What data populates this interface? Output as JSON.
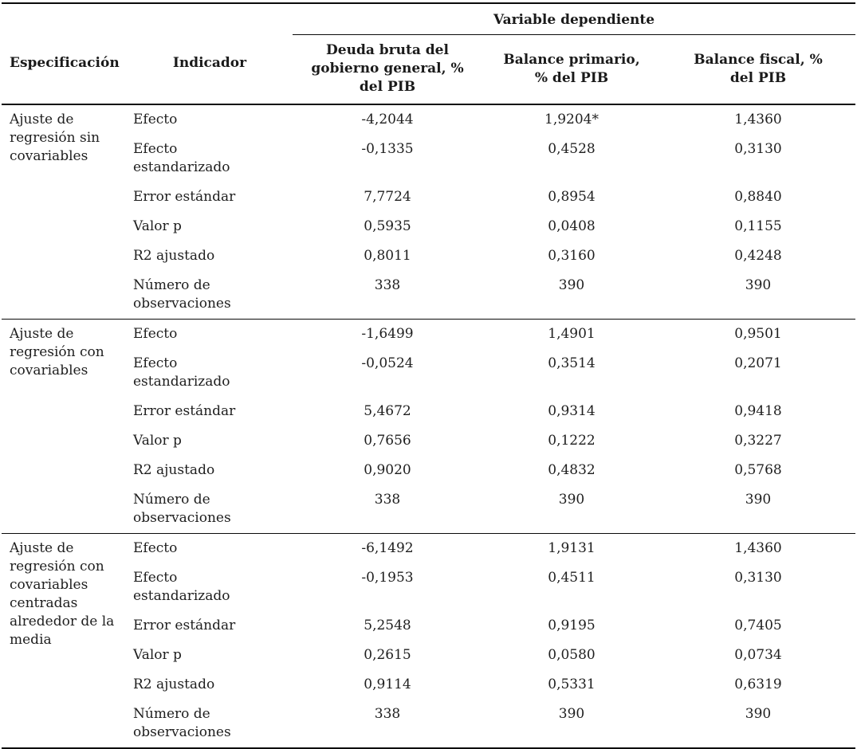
{
  "table": {
    "headers": {
      "especificacion": "Especificación",
      "indicador": "Indicador",
      "variable_dependiente": "Variable dependiente",
      "dep_vars": [
        "Deuda bruta del gobierno general, % del PIB",
        "Balance primario, % del PIB",
        "Balance fiscal, % del PIB"
      ]
    },
    "groups": [
      {
        "label": "Ajuste de regresión sin covariables",
        "rows": [
          {
            "indicator": "Efecto",
            "values": [
              "-4,2044",
              "1,9204*",
              "1,4360"
            ]
          },
          {
            "indicator": "Efecto estandarizado",
            "values": [
              "-0,1335",
              "0,4528",
              "0,3130"
            ]
          },
          {
            "indicator": "Error estándar",
            "values": [
              "7,7724",
              "0,8954",
              "0,8840"
            ]
          },
          {
            "indicator": "Valor p",
            "values": [
              "0,5935",
              "0,0408",
              "0,1155"
            ]
          },
          {
            "indicator": "R2 ajustado",
            "values": [
              "0,8011",
              "0,3160",
              "0,4248"
            ]
          },
          {
            "indicator": "Número de observaciones",
            "values": [
              "338",
              "390",
              "390"
            ]
          }
        ]
      },
      {
        "label": "Ajuste de regresión con covariables",
        "rows": [
          {
            "indicator": "Efecto",
            "values": [
              "-1,6499",
              "1,4901",
              "0,9501"
            ]
          },
          {
            "indicator": "Efecto estandarizado",
            "values": [
              "-0,0524",
              "0,3514",
              "0,2071"
            ]
          },
          {
            "indicator": "Error estándar",
            "values": [
              "5,4672",
              "0,9314",
              "0,9418"
            ]
          },
          {
            "indicator": "Valor p",
            "values": [
              "0,7656",
              "0,1222",
              "0,3227"
            ]
          },
          {
            "indicator": "R2 ajustado",
            "values": [
              "0,9020",
              "0,4832",
              "0,5768"
            ]
          },
          {
            "indicator": "Número de observaciones",
            "values": [
              "338",
              "390",
              "390"
            ]
          }
        ]
      },
      {
        "label": "Ajuste de regresión con covariables centradas alrededor de la media",
        "rows": [
          {
            "indicator": "Efecto",
            "values": [
              "-6,1492",
              "1,9131",
              "1,4360"
            ]
          },
          {
            "indicator": "Efecto estandarizado",
            "values": [
              "-0,1953",
              "0,4511",
              "0,3130"
            ]
          },
          {
            "indicator": "Error estándar",
            "values": [
              "5,2548",
              "0,9195",
              "0,7405"
            ]
          },
          {
            "indicator": "Valor p",
            "values": [
              "0,2615",
              "0,0580",
              "0,0734"
            ]
          },
          {
            "indicator": "R2 ajustado",
            "values": [
              "0,9114",
              "0,5331",
              "0,6319"
            ]
          },
          {
            "indicator": "Número de observaciones",
            "values": [
              "338",
              "390",
              "390"
            ]
          }
        ]
      }
    ]
  }
}
